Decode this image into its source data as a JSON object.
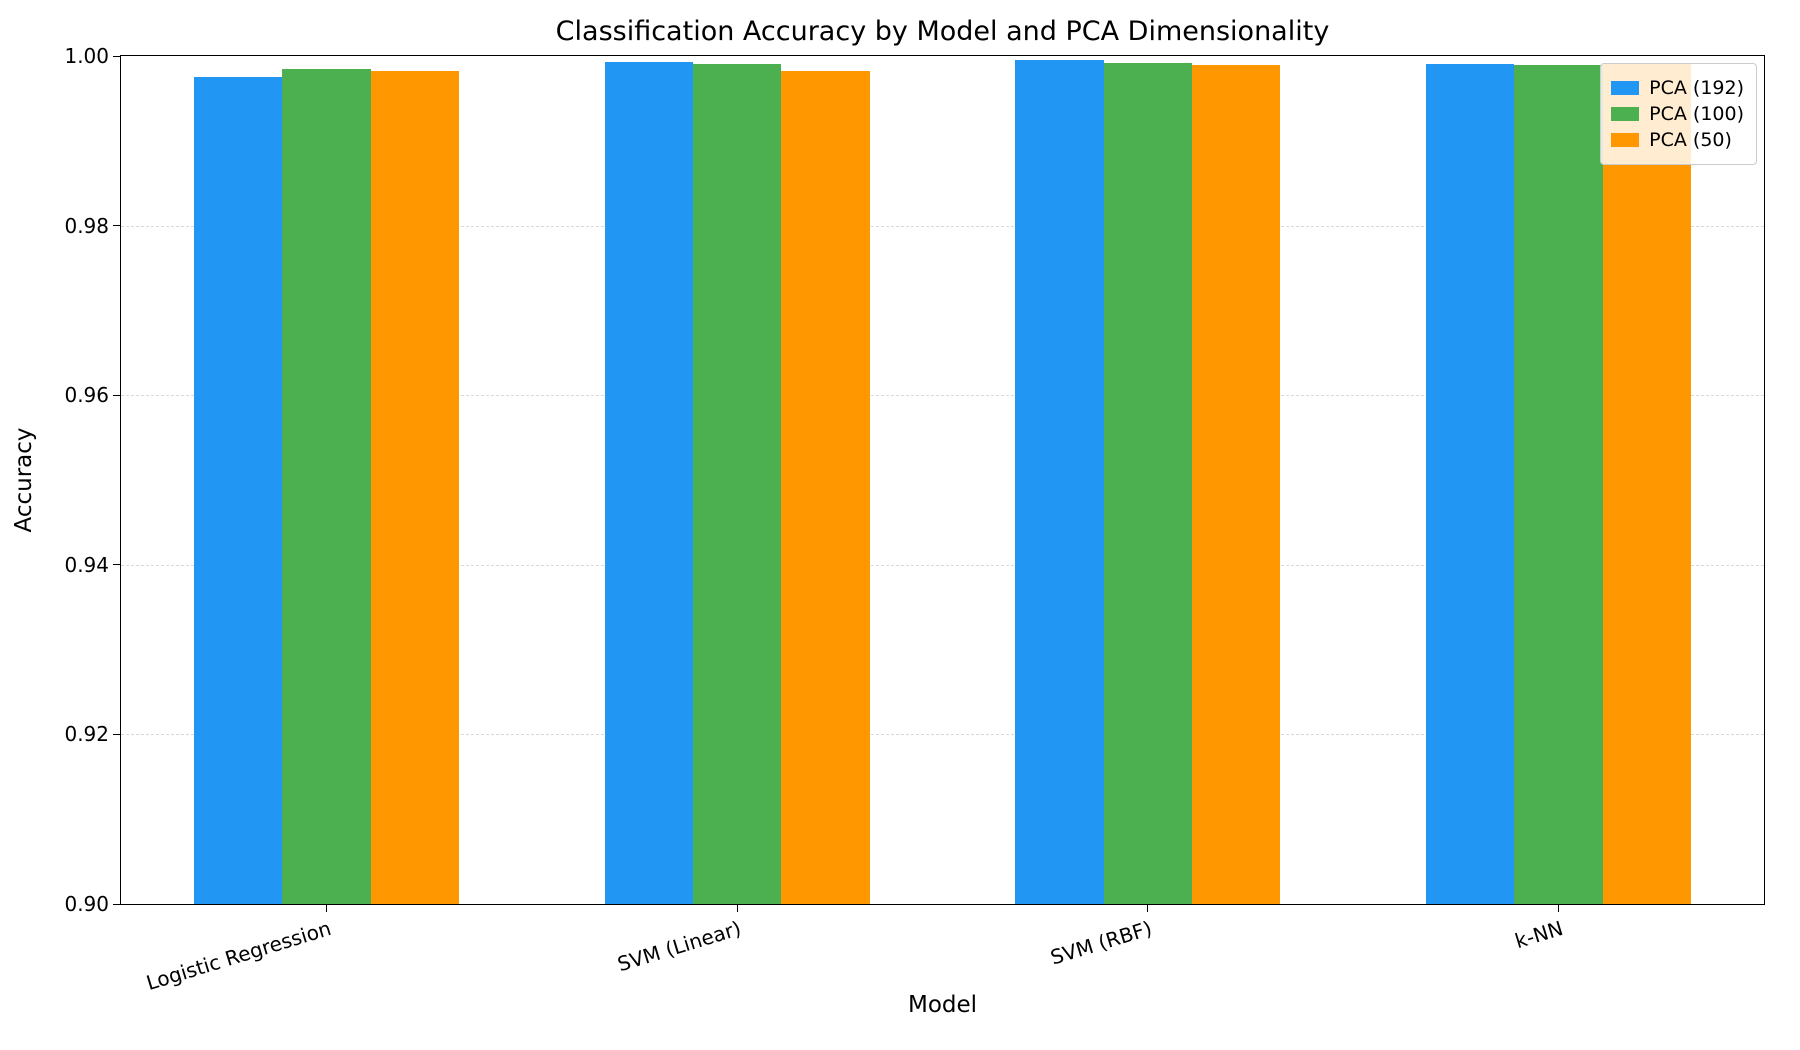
{
  "chart_data": {
    "type": "bar",
    "title": "Classification Accuracy by Model and PCA Dimensionality",
    "xlabel": "Model",
    "ylabel": "Accuracy",
    "ylim": [
      0.9,
      1.0
    ],
    "yticks": [
      0.9,
      0.92,
      0.94,
      0.96,
      0.98,
      1.0
    ],
    "categories": [
      "Logistic Regression",
      "SVM (Linear)",
      "SVM (RBF)",
      "k-NN"
    ],
    "series": [
      {
        "name": "PCA (192)",
        "color": "#2196f3",
        "values": [
          0.9975,
          0.9993,
          0.9995,
          0.9991
        ]
      },
      {
        "name": "PCA (100)",
        "color": "#4caf50",
        "values": [
          0.9985,
          0.9991,
          0.9992,
          0.9989
        ]
      },
      {
        "name": "PCA (50)",
        "color": "#ff9800",
        "values": [
          0.9982,
          0.9982,
          0.9989,
          0.999
        ]
      }
    ],
    "grid": "horizontal-dashed",
    "legend_position": "upper-right",
    "x_tick_rotation_deg": 17
  }
}
